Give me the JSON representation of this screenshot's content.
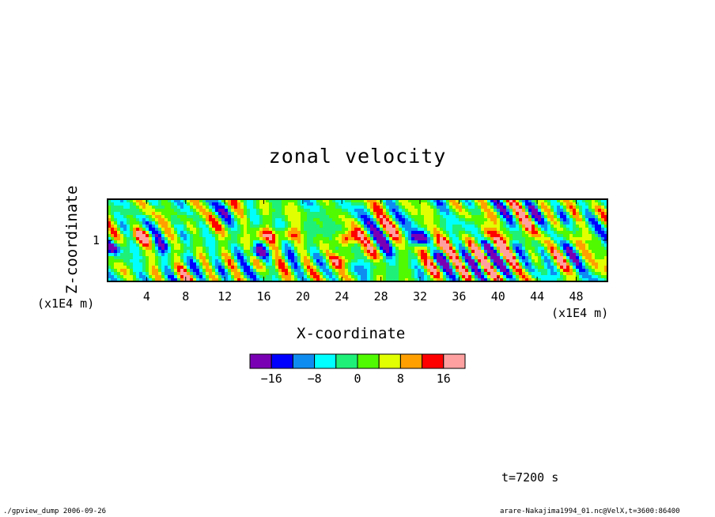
{
  "chart_data": {
    "type": "heatmap",
    "title": "zonal velocity",
    "xlabel": "X-coordinate",
    "ylabel": "Z-coordinate",
    "x_unit": "(x1E4 m)",
    "y_unit": "(x1E4 m)",
    "xlim": [
      0,
      51.2
    ],
    "ylim": [
      0.2,
      1.8
    ],
    "x_ticks": [
      "4",
      "8",
      "12",
      "16",
      "20",
      "24",
      "28",
      "32",
      "36",
      "40",
      "44",
      "48"
    ],
    "x_tick_values": [
      4,
      8,
      12,
      16,
      20,
      24,
      28,
      32,
      36,
      40,
      44,
      48
    ],
    "y_ticks": [
      "1"
    ],
    "y_tick_values": [
      1
    ],
    "colorbar": {
      "levels": [
        -20,
        -16,
        -12,
        -8,
        -4,
        0,
        4,
        8,
        12,
        16,
        20
      ],
      "labels": [
        "−16",
        "−8",
        "0",
        "8",
        "16"
      ],
      "label_values": [
        -16,
        -8,
        0,
        8,
        16
      ],
      "colors": [
        "#7a00b4",
        "#0000ff",
        "#0f8cf0",
        "#00ffff",
        "#1ef078",
        "#50fa00",
        "#e1ff00",
        "#ffa000",
        "#ff0000",
        "#ffa0a0"
      ]
    },
    "features": [
      {
        "x": 31.8,
        "z": 1.05,
        "value": -18
      },
      {
        "x": 33.2,
        "z": 0.85,
        "value": 14
      },
      {
        "x": 15.2,
        "z": 0.75,
        "value": -16
      },
      {
        "x": 0.6,
        "z": 0.85,
        "value": -14
      },
      {
        "x": 24.7,
        "z": 1.05,
        "value": 18
      },
      {
        "x": 23.8,
        "z": 0.6,
        "value": 14
      },
      {
        "x": 18.3,
        "z": 1.1,
        "value": 14
      },
      {
        "x": 15.8,
        "z": 1.1,
        "value": 13
      },
      {
        "x": 3.5,
        "z": 1.1,
        "value": 12
      },
      {
        "x": 38.5,
        "z": 1.1,
        "value": 12
      },
      {
        "x": 41.3,
        "z": 1.05,
        "value": 13
      },
      {
        "x": 27.5,
        "z": 0.55,
        "value": -9
      },
      {
        "x": 5.5,
        "z": 0.85,
        "value": -9
      }
    ]
  },
  "annotations": {
    "time": "t=7200 s",
    "footer_left": "./gpview_dump   2006-09-26",
    "footer_right": "arare-Nakajima1994_01.nc@VelX,t=3600:86400"
  }
}
